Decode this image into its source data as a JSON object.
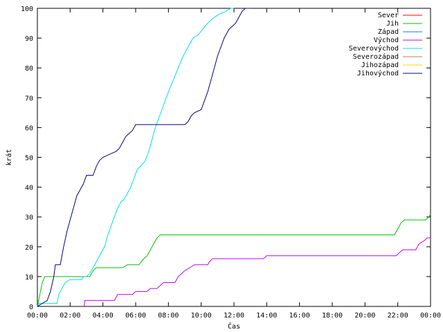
{
  "chart_data": {
    "type": "line",
    "title": "",
    "xlabel": "Čas",
    "ylabel": "krát",
    "xlim": [
      0,
      24
    ],
    "ylim": [
      0,
      100
    ],
    "x_ticks": [
      {
        "value": 0,
        "label": "00:00"
      },
      {
        "value": 2,
        "label": "02:00"
      },
      {
        "value": 4,
        "label": "04:00"
      },
      {
        "value": 6,
        "label": "06:00"
      },
      {
        "value": 8,
        "label": "08:00"
      },
      {
        "value": 10,
        "label": "10:00"
      },
      {
        "value": 12,
        "label": "12:00"
      },
      {
        "value": 14,
        "label": "14:00"
      },
      {
        "value": 16,
        "label": "16:00"
      },
      {
        "value": 18,
        "label": "18:00"
      },
      {
        "value": 20,
        "label": "20:00"
      },
      {
        "value": 22,
        "label": "22:00"
      },
      {
        "value": 24,
        "label": "00:00"
      }
    ],
    "y_ticks": [
      0,
      10,
      20,
      30,
      40,
      50,
      60,
      70,
      80,
      90,
      100
    ],
    "grid": false,
    "legend_position": "top-right",
    "series": [
      {
        "name": "Sever",
        "color": "#ff0000",
        "points": []
      },
      {
        "name": "Jih",
        "color": "#00c000",
        "points": [
          [
            0,
            0
          ],
          [
            0.15,
            4
          ],
          [
            0.3,
            8
          ],
          [
            0.45,
            10
          ],
          [
            3.2,
            10
          ],
          [
            3.4,
            12
          ],
          [
            3.6,
            13
          ],
          [
            5.2,
            13
          ],
          [
            5.5,
            14
          ],
          [
            6.2,
            14
          ],
          [
            6.5,
            16
          ],
          [
            6.7,
            17
          ],
          [
            6.9,
            19
          ],
          [
            7.1,
            21
          ],
          [
            7.3,
            23
          ],
          [
            7.5,
            24
          ],
          [
            21.8,
            24
          ],
          [
            22.0,
            26
          ],
          [
            22.2,
            28
          ],
          [
            22.4,
            29
          ],
          [
            23.7,
            29
          ],
          [
            23.9,
            30
          ],
          [
            24,
            31
          ]
        ]
      },
      {
        "name": "Západ",
        "color": "#0080ff",
        "points": []
      },
      {
        "name": "Východ",
        "color": "#c000ff",
        "points": [
          [
            2.85,
            0
          ],
          [
            2.9,
            2
          ],
          [
            4.7,
            2
          ],
          [
            4.9,
            4
          ],
          [
            5.8,
            4
          ],
          [
            6.0,
            5
          ],
          [
            6.7,
            5
          ],
          [
            6.9,
            6
          ],
          [
            7.3,
            6
          ],
          [
            7.5,
            7
          ],
          [
            7.7,
            8
          ],
          [
            8.4,
            8
          ],
          [
            8.6,
            10
          ],
          [
            8.8,
            11
          ],
          [
            9.0,
            12
          ],
          [
            9.3,
            13
          ],
          [
            9.6,
            14
          ],
          [
            10.4,
            14
          ],
          [
            10.5,
            15
          ],
          [
            10.7,
            16
          ],
          [
            13.8,
            16
          ],
          [
            14.0,
            17
          ],
          [
            21.9,
            17
          ],
          [
            22.1,
            18
          ],
          [
            22.3,
            19
          ],
          [
            23.1,
            19
          ],
          [
            23.3,
            21
          ],
          [
            23.6,
            22
          ],
          [
            23.8,
            23
          ],
          [
            24,
            23
          ]
        ]
      },
      {
        "name": "Severovýchod",
        "color": "#00e0e0",
        "points": [
          [
            0,
            0
          ],
          [
            0.1,
            1
          ],
          [
            1.2,
            1
          ],
          [
            1.3,
            4
          ],
          [
            1.5,
            6
          ],
          [
            1.7,
            8
          ],
          [
            2.0,
            9
          ],
          [
            2.7,
            9
          ],
          [
            2.8,
            10
          ],
          [
            3.0,
            10
          ],
          [
            3.2,
            11
          ],
          [
            3.4,
            13
          ],
          [
            3.6,
            15
          ],
          [
            3.8,
            17
          ],
          [
            4.1,
            20
          ],
          [
            4.3,
            24
          ],
          [
            4.5,
            27
          ],
          [
            4.7,
            30
          ],
          [
            4.9,
            33
          ],
          [
            5.1,
            35
          ],
          [
            5.3,
            36
          ],
          [
            5.5,
            38
          ],
          [
            5.7,
            40
          ],
          [
            5.9,
            43
          ],
          [
            6.1,
            46
          ],
          [
            6.3,
            47
          ],
          [
            6.6,
            49
          ],
          [
            6.8,
            52
          ],
          [
            7.0,
            56
          ],
          [
            7.2,
            60
          ],
          [
            7.4,
            63
          ],
          [
            7.6,
            66
          ],
          [
            7.8,
            69
          ],
          [
            8.0,
            72
          ],
          [
            8.3,
            76
          ],
          [
            8.6,
            80
          ],
          [
            8.9,
            84
          ],
          [
            9.2,
            87
          ],
          [
            9.5,
            90
          ],
          [
            9.8,
            91
          ],
          [
            10.1,
            93
          ],
          [
            10.4,
            95
          ],
          [
            10.8,
            97
          ],
          [
            11.1,
            98
          ],
          [
            11.5,
            99
          ],
          [
            11.8,
            100
          ],
          [
            12.0,
            100
          ]
        ]
      },
      {
        "name": "Severozápad",
        "color": "#c08040",
        "points": []
      },
      {
        "name": "Jihozápad",
        "color": "#ffd700",
        "points": []
      },
      {
        "name": "Jihovýchod",
        "color": "#000080",
        "points": [
          [
            0,
            0
          ],
          [
            0.6,
            2
          ],
          [
            0.8,
            5
          ],
          [
            1.0,
            10
          ],
          [
            1.1,
            14
          ],
          [
            1.4,
            14
          ],
          [
            1.6,
            20
          ],
          [
            1.8,
            25
          ],
          [
            2.0,
            29
          ],
          [
            2.2,
            33
          ],
          [
            2.4,
            37
          ],
          [
            2.6,
            39
          ],
          [
            2.8,
            41
          ],
          [
            3.0,
            44
          ],
          [
            3.4,
            44
          ],
          [
            3.6,
            47
          ],
          [
            3.8,
            49
          ],
          [
            4.0,
            50
          ],
          [
            4.4,
            51
          ],
          [
            4.8,
            52
          ],
          [
            5.0,
            53
          ],
          [
            5.2,
            55
          ],
          [
            5.4,
            57
          ],
          [
            5.6,
            58
          ],
          [
            5.8,
            59
          ],
          [
            6.0,
            61
          ],
          [
            9.0,
            61
          ],
          [
            9.2,
            62
          ],
          [
            9.4,
            64
          ],
          [
            9.6,
            65
          ],
          [
            10.0,
            66
          ],
          [
            10.2,
            69
          ],
          [
            10.4,
            72
          ],
          [
            10.6,
            76
          ],
          [
            10.8,
            80
          ],
          [
            11.0,
            84
          ],
          [
            11.2,
            87
          ],
          [
            11.4,
            90
          ],
          [
            11.7,
            93
          ],
          [
            12.1,
            95
          ],
          [
            12.3,
            97
          ],
          [
            12.5,
            99
          ],
          [
            12.7,
            100
          ],
          [
            13.0,
            100
          ]
        ]
      }
    ]
  }
}
